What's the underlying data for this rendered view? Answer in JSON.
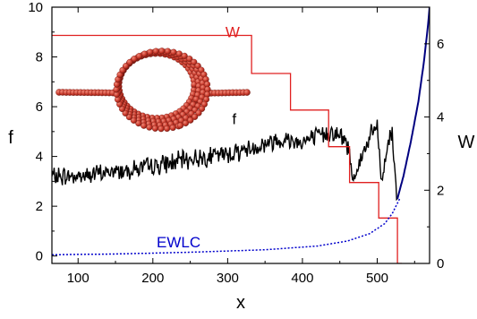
{
  "chart_data": {
    "type": "line",
    "x_axis": {
      "label": "x",
      "range": [
        65,
        570
      ],
      "ticks": [
        100,
        200,
        300,
        400,
        500
      ],
      "tick_labels": [
        "100",
        "200",
        "300",
        "400",
        "500"
      ]
    },
    "y_left": {
      "label": "f",
      "range": [
        -0.3,
        10
      ],
      "ticks": [
        0,
        2,
        4,
        6,
        8,
        10
      ],
      "tick_labels": [
        "0",
        "2",
        "4",
        "6",
        "8",
        "10"
      ]
    },
    "y_right": {
      "label": "W",
      "range": [
        0,
        7
      ],
      "ticks": [
        0,
        2,
        4,
        6
      ],
      "tick_labels": [
        "0",
        "2",
        "4",
        "6"
      ]
    },
    "series": [
      {
        "name": "f",
        "axis": "left",
        "color": "#000000",
        "style": "solid",
        "noise_amplitude": 0.3,
        "x": [
          65,
          100,
          150,
          200,
          250,
          300,
          340,
          370,
          400,
          420,
          440,
          455,
          462,
          467,
          475,
          490,
          500,
          506,
          515,
          520,
          527
        ],
        "y": [
          3.2,
          3.2,
          3.4,
          3.6,
          3.9,
          4.1,
          4.4,
          4.7,
          4.6,
          4.8,
          5.0,
          4.7,
          4.3,
          3.2,
          3.6,
          4.8,
          5.2,
          2.9,
          4.7,
          4.9,
          2.1
        ]
      },
      {
        "name": "W",
        "axis": "right",
        "color": "#e02020",
        "style": "step",
        "x": [
          65,
          332,
          332,
          384,
          384,
          435,
          435,
          463,
          463,
          502,
          502,
          527,
          527,
          533
        ],
        "y": [
          6.23,
          6.23,
          5.19,
          5.19,
          4.19,
          4.19,
          3.19,
          3.19,
          2.21,
          2.21,
          1.24,
          1.24,
          0,
          0
        ]
      },
      {
        "name": "EWLC",
        "axis": "left",
        "color": "#0000cc",
        "style": "dotted",
        "x": [
          65,
          150,
          250,
          350,
          420,
          460,
          490,
          510,
          520,
          525,
          530
        ],
        "y": [
          0.05,
          0.08,
          0.15,
          0.25,
          0.4,
          0.6,
          0.9,
          1.3,
          1.7,
          2.0,
          2.3
        ]
      },
      {
        "name": "",
        "axis": "left",
        "color": "#000080",
        "style": "solid",
        "x": [
          527,
          535,
          545,
          555,
          562,
          568,
          570
        ],
        "y": [
          2.3,
          3.2,
          4.6,
          6.2,
          7.7,
          9.3,
          10
        ]
      }
    ],
    "annotations": [
      {
        "text": "W",
        "color": "#e02020",
        "x": 297,
        "y": 8.8
      },
      {
        "text": "f",
        "color": "#000000",
        "x": 306,
        "y": 5.3
      },
      {
        "text": "EWLC",
        "color": "#0000cc",
        "x": 205,
        "y": 0.35
      }
    ],
    "inset_image": "coiled-bead-chain"
  }
}
